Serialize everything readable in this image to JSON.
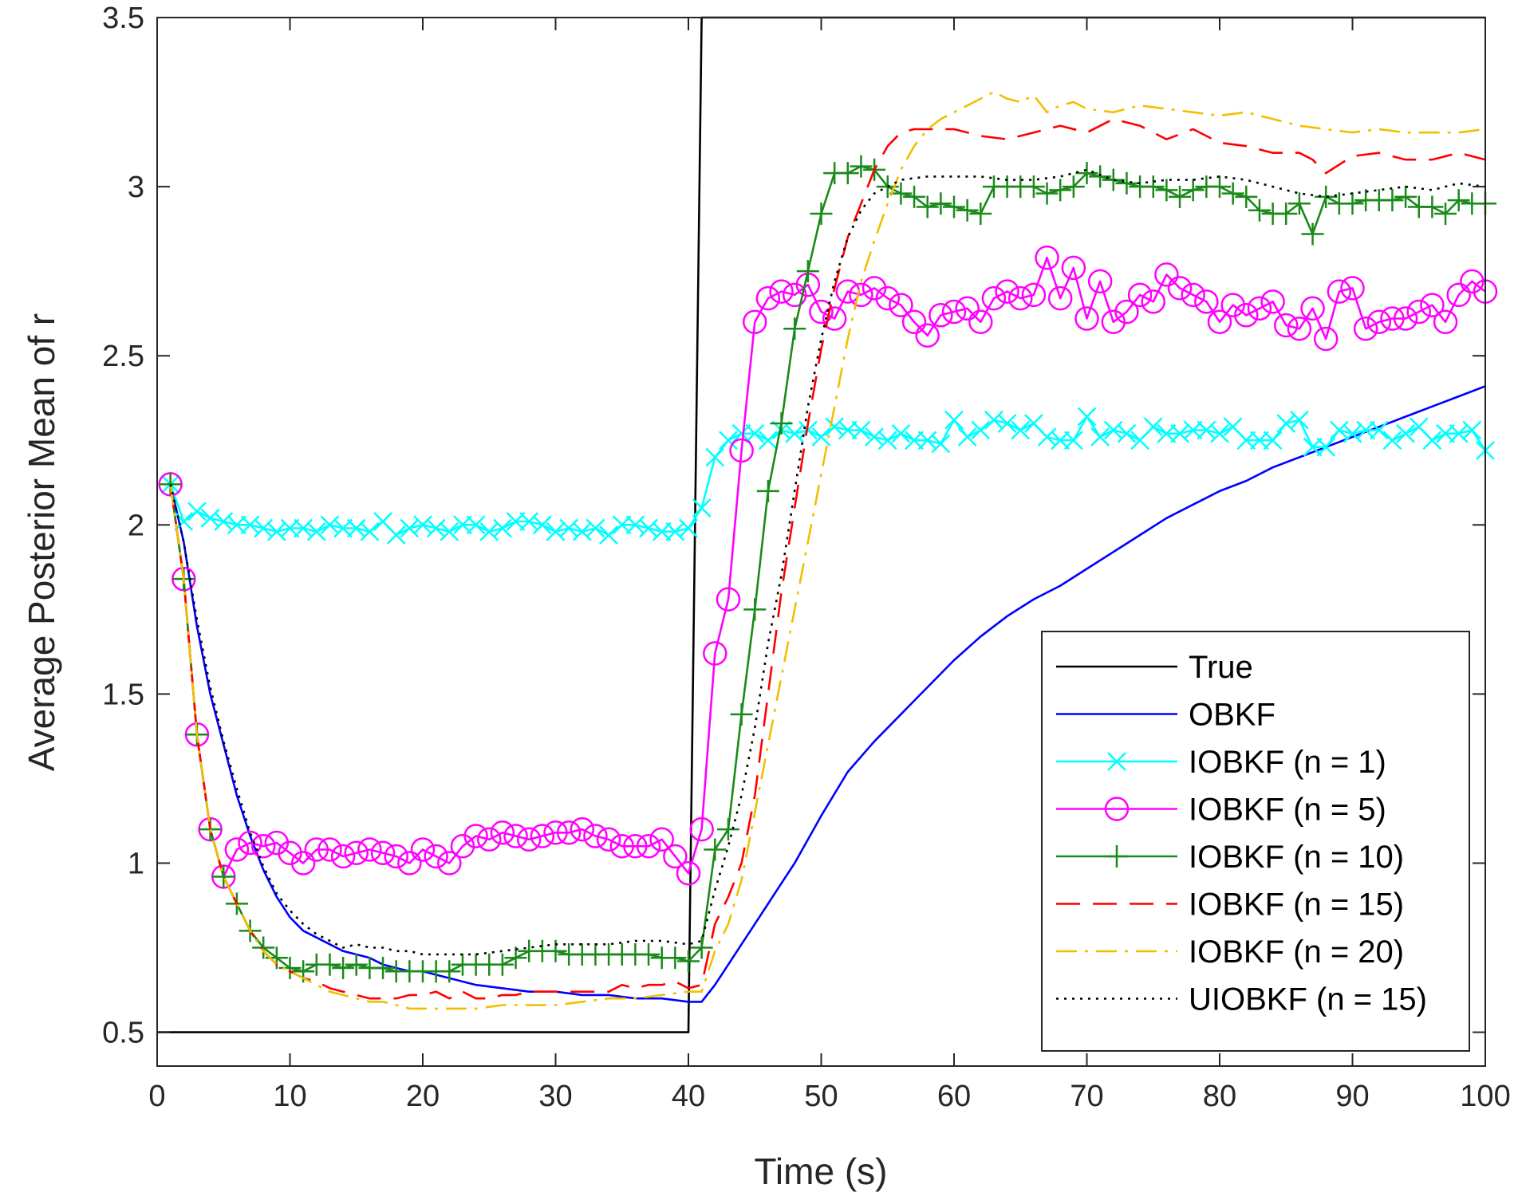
{
  "chart_data": {
    "type": "line",
    "title": "",
    "xlabel": "Time (s)",
    "ylabel": "Average Posterior Mean of r",
    "xlim": [
      0,
      100
    ],
    "ylim": [
      0.4,
      3.5
    ],
    "xticks": [
      0,
      10,
      20,
      30,
      40,
      50,
      60,
      70,
      80,
      90,
      100
    ],
    "yticks": [
      0.5,
      1,
      1.5,
      2,
      2.5,
      3,
      3.5
    ],
    "xtick_labels": [
      "0",
      "10",
      "20",
      "30",
      "40",
      "50",
      "60",
      "70",
      "80",
      "90",
      "100"
    ],
    "ytick_labels": [
      "0.5",
      "1",
      "1.5",
      "2",
      "2.5",
      "3",
      "3.5"
    ],
    "grid": false,
    "legend_position": "bottom-right",
    "series": [
      {
        "name": "True",
        "color": "#000000",
        "dash": "solid",
        "marker": "none",
        "x": [
          0,
          40,
          41,
          100
        ],
        "y": [
          0.5,
          0.5,
          3.5,
          3.5
        ]
      },
      {
        "name": "OBKF",
        "color": "#0000ff",
        "dash": "solid",
        "marker": "none",
        "x": [
          1,
          2,
          3,
          4,
          5,
          6,
          7,
          8,
          9,
          10,
          11,
          12,
          13,
          14,
          15,
          16,
          17,
          18,
          19,
          20,
          22,
          24,
          26,
          28,
          30,
          32,
          34,
          36,
          38,
          40,
          41,
          42,
          43,
          44,
          45,
          46,
          47,
          48,
          49,
          50,
          52,
          54,
          56,
          58,
          60,
          62,
          64,
          66,
          68,
          70,
          72,
          74,
          76,
          78,
          80,
          82,
          84,
          86,
          88,
          90,
          92,
          94,
          96,
          98,
          100
        ],
        "y": [
          2.12,
          1.95,
          1.7,
          1.5,
          1.35,
          1.2,
          1.08,
          0.98,
          0.9,
          0.84,
          0.8,
          0.78,
          0.76,
          0.74,
          0.73,
          0.72,
          0.7,
          0.69,
          0.68,
          0.68,
          0.66,
          0.64,
          0.63,
          0.62,
          0.62,
          0.61,
          0.61,
          0.6,
          0.6,
          0.59,
          0.59,
          0.64,
          0.7,
          0.76,
          0.82,
          0.88,
          0.94,
          1.0,
          1.07,
          1.14,
          1.27,
          1.36,
          1.44,
          1.52,
          1.6,
          1.67,
          1.73,
          1.78,
          1.82,
          1.87,
          1.92,
          1.97,
          2.02,
          2.06,
          2.1,
          2.13,
          2.17,
          2.2,
          2.23,
          2.26,
          2.29,
          2.32,
          2.35,
          2.38,
          2.41
        ]
      },
      {
        "name": "IOBKF (n = 1)",
        "color": "#00ffff",
        "dash": "solid",
        "marker": "x",
        "x": [
          1,
          2,
          3,
          4,
          5,
          6,
          7,
          8,
          9,
          10,
          11,
          12,
          13,
          14,
          15,
          16,
          17,
          18,
          19,
          20,
          21,
          22,
          23,
          24,
          25,
          26,
          27,
          28,
          29,
          30,
          31,
          32,
          33,
          34,
          35,
          36,
          37,
          38,
          39,
          40,
          41,
          42,
          43,
          44,
          45,
          46,
          47,
          48,
          49,
          50,
          51,
          52,
          53,
          54,
          55,
          56,
          57,
          58,
          59,
          60,
          61,
          62,
          63,
          64,
          65,
          66,
          67,
          68,
          69,
          70,
          71,
          72,
          73,
          74,
          75,
          76,
          77,
          78,
          79,
          80,
          81,
          82,
          83,
          84,
          85,
          86,
          87,
          88,
          89,
          90,
          91,
          92,
          93,
          94,
          95,
          96,
          97,
          98,
          99,
          100
        ],
        "y": [
          2.12,
          2.01,
          2.04,
          2.02,
          2.01,
          2.0,
          2.0,
          1.99,
          1.98,
          1.99,
          1.99,
          1.98,
          2.0,
          1.99,
          1.99,
          1.98,
          2.01,
          1.97,
          1.99,
          2.0,
          1.99,
          1.98,
          2.0,
          2.0,
          1.98,
          1.99,
          2.01,
          2.01,
          2.0,
          1.98,
          1.99,
          1.98,
          1.99,
          1.97,
          2.0,
          2.0,
          1.99,
          1.98,
          1.98,
          1.99,
          2.05,
          2.2,
          2.25,
          2.27,
          2.27,
          2.25,
          2.28,
          2.27,
          2.28,
          2.26,
          2.29,
          2.28,
          2.28,
          2.26,
          2.25,
          2.27,
          2.25,
          2.25,
          2.24,
          2.31,
          2.26,
          2.28,
          2.31,
          2.3,
          2.28,
          2.3,
          2.26,
          2.25,
          2.25,
          2.32,
          2.26,
          2.28,
          2.27,
          2.25,
          2.29,
          2.27,
          2.27,
          2.28,
          2.28,
          2.27,
          2.29,
          2.25,
          2.25,
          2.25,
          2.3,
          2.31,
          2.23,
          2.23,
          2.28,
          2.27,
          2.28,
          2.28,
          2.25,
          2.27,
          2.29,
          2.25,
          2.27,
          2.27,
          2.28,
          2.22
        ]
      },
      {
        "name": "IOBKF (n = 5)",
        "color": "#ff00ff",
        "dash": "solid",
        "marker": "o",
        "x": [
          1,
          2,
          3,
          4,
          5,
          6,
          7,
          8,
          9,
          10,
          11,
          12,
          13,
          14,
          15,
          16,
          17,
          18,
          19,
          20,
          21,
          22,
          23,
          24,
          25,
          26,
          27,
          28,
          29,
          30,
          31,
          32,
          33,
          34,
          35,
          36,
          37,
          38,
          39,
          40,
          41,
          42,
          43,
          44,
          45,
          46,
          47,
          48,
          49,
          50,
          51,
          52,
          53,
          54,
          55,
          56,
          57,
          58,
          59,
          60,
          61,
          62,
          63,
          64,
          65,
          66,
          67,
          68,
          69,
          70,
          71,
          72,
          73,
          74,
          75,
          76,
          77,
          78,
          79,
          80,
          81,
          82,
          83,
          84,
          85,
          86,
          87,
          88,
          89,
          90,
          91,
          92,
          93,
          94,
          95,
          96,
          97,
          98,
          99,
          100
        ],
        "y": [
          2.12,
          1.84,
          1.38,
          1.1,
          0.96,
          1.04,
          1.06,
          1.05,
          1.06,
          1.03,
          1.0,
          1.04,
          1.04,
          1.02,
          1.03,
          1.04,
          1.03,
          1.02,
          1.0,
          1.04,
          1.02,
          1.0,
          1.05,
          1.08,
          1.07,
          1.09,
          1.08,
          1.07,
          1.08,
          1.09,
          1.09,
          1.1,
          1.08,
          1.07,
          1.05,
          1.05,
          1.05,
          1.07,
          1.02,
          0.97,
          1.1,
          1.62,
          1.78,
          2.22,
          2.6,
          2.67,
          2.69,
          2.68,
          2.71,
          2.63,
          2.61,
          2.69,
          2.68,
          2.7,
          2.67,
          2.65,
          2.6,
          2.56,
          2.62,
          2.63,
          2.64,
          2.6,
          2.67,
          2.69,
          2.67,
          2.68,
          2.79,
          2.67,
          2.76,
          2.61,
          2.72,
          2.6,
          2.63,
          2.68,
          2.66,
          2.74,
          2.7,
          2.68,
          2.66,
          2.6,
          2.65,
          2.62,
          2.64,
          2.66,
          2.59,
          2.58,
          2.64,
          2.55,
          2.69,
          2.7,
          2.58,
          2.6,
          2.61,
          2.61,
          2.63,
          2.65,
          2.6,
          2.68,
          2.72,
          2.69
        ]
      },
      {
        "name": "IOBKF (n = 10)",
        "color": "#1a8a1a",
        "dash": "solid",
        "marker": "+",
        "x": [
          1,
          2,
          3,
          4,
          5,
          6,
          7,
          8,
          9,
          10,
          11,
          12,
          13,
          14,
          15,
          16,
          17,
          18,
          19,
          20,
          21,
          22,
          23,
          24,
          25,
          26,
          27,
          28,
          29,
          30,
          31,
          32,
          33,
          34,
          35,
          36,
          37,
          38,
          39,
          40,
          41,
          42,
          43,
          44,
          45,
          46,
          47,
          48,
          49,
          50,
          51,
          52,
          53,
          54,
          55,
          56,
          57,
          58,
          59,
          60,
          61,
          62,
          63,
          64,
          65,
          66,
          67,
          68,
          69,
          70,
          71,
          72,
          73,
          74,
          75,
          76,
          77,
          78,
          79,
          80,
          81,
          82,
          83,
          84,
          85,
          86,
          87,
          88,
          89,
          90,
          91,
          92,
          93,
          94,
          95,
          96,
          97,
          98,
          99,
          100
        ],
        "y": [
          2.12,
          1.84,
          1.38,
          1.1,
          0.96,
          0.88,
          0.8,
          0.75,
          0.72,
          0.69,
          0.68,
          0.7,
          0.7,
          0.69,
          0.7,
          0.69,
          0.69,
          0.68,
          0.68,
          0.68,
          0.68,
          0.68,
          0.7,
          0.7,
          0.7,
          0.7,
          0.72,
          0.74,
          0.74,
          0.74,
          0.73,
          0.73,
          0.73,
          0.73,
          0.73,
          0.73,
          0.73,
          0.72,
          0.72,
          0.71,
          0.75,
          1.04,
          1.1,
          1.44,
          1.75,
          2.1,
          2.3,
          2.58,
          2.75,
          2.92,
          3.04,
          3.04,
          3.06,
          3.05,
          3.0,
          2.98,
          2.97,
          2.94,
          2.95,
          2.94,
          2.93,
          2.92,
          3.0,
          3.0,
          3.0,
          3.0,
          2.98,
          2.99,
          3.0,
          3.04,
          3.03,
          3.02,
          3.01,
          3.0,
          3.0,
          2.99,
          2.97,
          2.99,
          3.0,
          3.0,
          2.98,
          2.97,
          2.93,
          2.92,
          2.92,
          2.95,
          2.86,
          2.97,
          2.95,
          2.95,
          2.96,
          2.96,
          2.96,
          2.97,
          2.94,
          2.94,
          2.92,
          2.96,
          2.95,
          2.95
        ]
      },
      {
        "name": "IOBKF (n = 15)",
        "color": "#ff0000",
        "dash": "dashed",
        "marker": "none",
        "x": [
          1,
          2,
          3,
          4,
          5,
          6,
          7,
          8,
          9,
          10,
          11,
          12,
          13,
          14,
          15,
          16,
          17,
          18,
          19,
          20,
          21,
          22,
          23,
          24,
          25,
          26,
          27,
          28,
          29,
          30,
          31,
          32,
          33,
          34,
          35,
          36,
          37,
          38,
          39,
          40,
          41,
          42,
          43,
          44,
          45,
          46,
          47,
          48,
          49,
          50,
          51,
          52,
          53,
          54,
          55,
          56,
          57,
          58,
          59,
          60,
          62,
          64,
          66,
          68,
          70,
          72,
          74,
          76,
          78,
          80,
          82,
          84,
          86,
          87,
          88,
          90,
          92,
          94,
          96,
          98,
          100
        ],
        "y": [
          2.12,
          1.84,
          1.38,
          1.1,
          0.96,
          0.88,
          0.8,
          0.74,
          0.7,
          0.68,
          0.66,
          0.65,
          0.63,
          0.62,
          0.61,
          0.6,
          0.6,
          0.6,
          0.61,
          0.61,
          0.62,
          0.6,
          0.62,
          0.6,
          0.6,
          0.61,
          0.61,
          0.62,
          0.62,
          0.62,
          0.62,
          0.62,
          0.62,
          0.62,
          0.64,
          0.63,
          0.64,
          0.64,
          0.65,
          0.63,
          0.64,
          0.82,
          0.9,
          1.0,
          1.2,
          1.5,
          1.8,
          2.05,
          2.3,
          2.52,
          2.7,
          2.85,
          2.95,
          3.05,
          3.12,
          3.16,
          3.17,
          3.17,
          3.17,
          3.17,
          3.15,
          3.14,
          3.16,
          3.18,
          3.16,
          3.2,
          3.18,
          3.14,
          3.17,
          3.13,
          3.12,
          3.1,
          3.1,
          3.08,
          3.04,
          3.09,
          3.1,
          3.08,
          3.08,
          3.1,
          3.08
        ]
      },
      {
        "name": "IOBKF (n = 20)",
        "color": "#f0c000",
        "dash": "dashdot",
        "marker": "none",
        "x": [
          1,
          2,
          3,
          4,
          5,
          6,
          7,
          8,
          9,
          10,
          11,
          12,
          13,
          14,
          15,
          16,
          17,
          18,
          19,
          20,
          22,
          24,
          26,
          28,
          30,
          32,
          34,
          36,
          38,
          40,
          41,
          42,
          43,
          44,
          45,
          46,
          47,
          48,
          49,
          50,
          51,
          52,
          53,
          54,
          55,
          56,
          57,
          58,
          59,
          60,
          61,
          62,
          63,
          64,
          65,
          66,
          67,
          68,
          69,
          70,
          72,
          74,
          76,
          78,
          80,
          82,
          84,
          86,
          88,
          90,
          92,
          94,
          96,
          98,
          100
        ],
        "y": [
          2.12,
          1.84,
          1.38,
          1.1,
          0.96,
          0.88,
          0.8,
          0.74,
          0.7,
          0.68,
          0.66,
          0.64,
          0.62,
          0.61,
          0.6,
          0.59,
          0.59,
          0.58,
          0.57,
          0.57,
          0.57,
          0.57,
          0.58,
          0.58,
          0.58,
          0.59,
          0.6,
          0.6,
          0.61,
          0.62,
          0.62,
          0.74,
          0.82,
          0.95,
          1.15,
          1.35,
          1.55,
          1.75,
          1.95,
          2.15,
          2.35,
          2.55,
          2.72,
          2.84,
          2.95,
          3.05,
          3.12,
          3.17,
          3.2,
          3.22,
          3.24,
          3.26,
          3.28,
          3.26,
          3.25,
          3.27,
          3.22,
          3.24,
          3.25,
          3.23,
          3.22,
          3.24,
          3.23,
          3.22,
          3.21,
          3.22,
          3.2,
          3.18,
          3.17,
          3.16,
          3.17,
          3.16,
          3.16,
          3.16,
          3.17
        ]
      },
      {
        "name": "UIOBKF (n = 15)",
        "color": "#000000",
        "dash": "dotted",
        "marker": "none",
        "x": [
          1,
          2,
          3,
          4,
          5,
          6,
          7,
          8,
          9,
          10,
          11,
          12,
          13,
          14,
          15,
          16,
          17,
          18,
          19,
          20,
          22,
          24,
          26,
          28,
          30,
          32,
          34,
          36,
          38,
          40,
          41,
          42,
          43,
          44,
          45,
          46,
          47,
          48,
          49,
          50,
          51,
          52,
          53,
          54,
          55,
          56,
          58,
          60,
          62,
          64,
          66,
          68,
          70,
          72,
          74,
          76,
          78,
          80,
          82,
          84,
          86,
          88,
          90,
          92,
          94,
          96,
          98,
          100
        ],
        "y": [
          2.12,
          1.95,
          1.72,
          1.52,
          1.36,
          1.22,
          1.09,
          0.99,
          0.91,
          0.86,
          0.82,
          0.79,
          0.77,
          0.75,
          0.76,
          0.75,
          0.75,
          0.74,
          0.74,
          0.73,
          0.73,
          0.73,
          0.74,
          0.75,
          0.76,
          0.76,
          0.76,
          0.77,
          0.77,
          0.76,
          0.77,
          0.92,
          1.05,
          1.2,
          1.4,
          1.65,
          1.85,
          2.1,
          2.35,
          2.55,
          2.72,
          2.85,
          2.93,
          2.98,
          3.0,
          3.02,
          3.03,
          3.03,
          3.03,
          3.02,
          3.02,
          3.03,
          3.05,
          3.02,
          3.01,
          3.02,
          3.02,
          3.03,
          3.02,
          3.0,
          2.98,
          2.97,
          2.98,
          2.99,
          3.0,
          2.99,
          3.01,
          3.0
        ]
      }
    ]
  }
}
